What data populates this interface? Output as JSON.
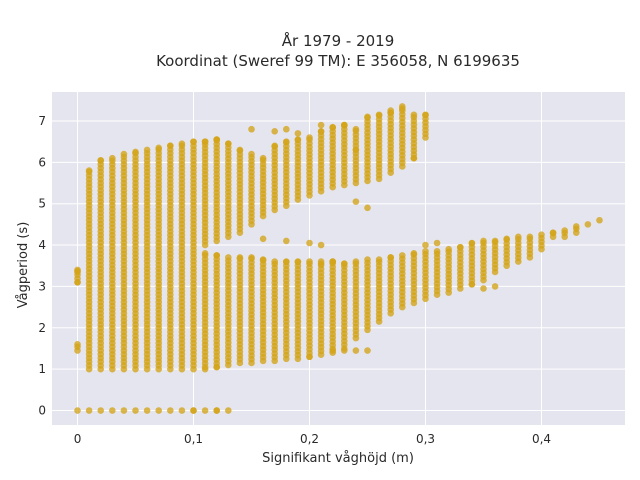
{
  "chart_data": {
    "type": "scatter",
    "title_lines": [
      "År 1979 - 2019",
      "Koordinat (Sweref 99 TM): E 356058, N 6199635"
    ],
    "xlabel": "Signifikant våghöjd (m)",
    "ylabel": "Vågperiod (s)",
    "xlim": [
      -0.022,
      0.472
    ],
    "ylim": [
      -0.35,
      7.7
    ],
    "xticks": [
      0,
      0.1,
      0.2,
      0.3,
      0.4
    ],
    "xtick_labels": [
      "0",
      "0,1",
      "0,2",
      "0,3",
      "0,4"
    ],
    "yticks": [
      0,
      1,
      2,
      3,
      4,
      5,
      6,
      7
    ],
    "ytick_labels": [
      "0",
      "1",
      "2",
      "3",
      "4",
      "5",
      "6",
      "7"
    ],
    "grid": true,
    "background_color": "#e5e5ef",
    "marker_color": "#d4a418",
    "column_spacing": 0.01,
    "columns": [
      {
        "x": 0.0,
        "ranges": [
          [
            0,
            0
          ],
          [
            1.45,
            1.6
          ],
          [
            3.1,
            3.4
          ]
        ]
      },
      {
        "x": 0.01,
        "ranges": [
          [
            0,
            0
          ],
          [
            1.0,
            5.8
          ]
        ]
      },
      {
        "x": 0.02,
        "ranges": [
          [
            0,
            0
          ],
          [
            1.0,
            6.05
          ]
        ]
      },
      {
        "x": 0.03,
        "ranges": [
          [
            0,
            0
          ],
          [
            1.0,
            6.1
          ]
        ]
      },
      {
        "x": 0.04,
        "ranges": [
          [
            0,
            0
          ],
          [
            1.0,
            6.2
          ]
        ]
      },
      {
        "x": 0.05,
        "ranges": [
          [
            0,
            0
          ],
          [
            1.0,
            6.25
          ]
        ]
      },
      {
        "x": 0.06,
        "ranges": [
          [
            0,
            0
          ],
          [
            1.0,
            6.3
          ]
        ]
      },
      {
        "x": 0.07,
        "ranges": [
          [
            0,
            0
          ],
          [
            1.0,
            6.35
          ]
        ]
      },
      {
        "x": 0.08,
        "ranges": [
          [
            0,
            0
          ],
          [
            1.0,
            6.4
          ]
        ]
      },
      {
        "x": 0.09,
        "ranges": [
          [
            0,
            0
          ],
          [
            1.0,
            6.45
          ]
        ]
      },
      {
        "x": 0.1,
        "ranges": [
          [
            0,
            0
          ],
          [
            1.0,
            6.5
          ]
        ]
      },
      {
        "x": 0.11,
        "ranges": [
          [
            1.05,
            3.8
          ],
          [
            4.0,
            6.5
          ]
        ]
      },
      {
        "x": 0.12,
        "ranges": [
          [
            0,
            0
          ],
          [
            1.05,
            3.75
          ],
          [
            4.1,
            6.55
          ]
        ]
      },
      {
        "x": 0.13,
        "ranges": [
          [
            1.1,
            3.7
          ],
          [
            4.2,
            6.45
          ]
        ]
      },
      {
        "x": 0.14,
        "ranges": [
          [
            1.15,
            3.7
          ],
          [
            4.3,
            6.3
          ]
        ]
      },
      {
        "x": 0.15,
        "ranges": [
          [
            1.15,
            3.7
          ],
          [
            4.5,
            6.2
          ]
        ]
      },
      {
        "x": 0.16,
        "ranges": [
          [
            1.2,
            3.65
          ],
          [
            4.7,
            6.1
          ]
        ]
      },
      {
        "x": 0.17,
        "ranges": [
          [
            1.2,
            3.6
          ],
          [
            4.85,
            6.4
          ]
        ]
      },
      {
        "x": 0.18,
        "ranges": [
          [
            1.25,
            3.6
          ],
          [
            4.95,
            6.5
          ]
        ]
      },
      {
        "x": 0.19,
        "ranges": [
          [
            1.25,
            3.6
          ],
          [
            5.1,
            6.55
          ]
        ]
      },
      {
        "x": 0.2,
        "ranges": [
          [
            1.3,
            3.6
          ],
          [
            5.2,
            6.6
          ]
        ]
      },
      {
        "x": 0.21,
        "ranges": [
          [
            1.35,
            3.55
          ],
          [
            5.3,
            6.75
          ]
        ]
      },
      {
        "x": 0.22,
        "ranges": [
          [
            1.4,
            3.6
          ],
          [
            5.4,
            6.85
          ]
        ]
      },
      {
        "x": 0.23,
        "ranges": [
          [
            1.5,
            3.55
          ],
          [
            5.45,
            6.9
          ]
        ]
      },
      {
        "x": 0.24,
        "ranges": [
          [
            1.75,
            3.6
          ],
          [
            5.5,
            6.8
          ]
        ]
      },
      {
        "x": 0.25,
        "ranges": [
          [
            1.95,
            3.65
          ],
          [
            5.55,
            7.1
          ]
        ]
      },
      {
        "x": 0.26,
        "ranges": [
          [
            2.15,
            3.65
          ],
          [
            5.6,
            7.15
          ]
        ]
      },
      {
        "x": 0.27,
        "ranges": [
          [
            2.35,
            3.7
          ],
          [
            5.75,
            7.2
          ]
        ]
      },
      {
        "x": 0.28,
        "ranges": [
          [
            2.5,
            3.75
          ],
          [
            5.9,
            7.3
          ]
        ]
      },
      {
        "x": 0.29,
        "ranges": [
          [
            2.6,
            3.8
          ],
          [
            6.1,
            7.15
          ]
        ]
      },
      {
        "x": 0.3,
        "ranges": [
          [
            2.7,
            3.85
          ],
          [
            6.6,
            7.15
          ]
        ]
      },
      {
        "x": 0.31,
        "ranges": [
          [
            2.8,
            3.85
          ]
        ]
      },
      {
        "x": 0.32,
        "ranges": [
          [
            2.85,
            3.9
          ]
        ]
      },
      {
        "x": 0.33,
        "ranges": [
          [
            2.95,
            3.95
          ]
        ]
      },
      {
        "x": 0.34,
        "ranges": [
          [
            3.05,
            4.05
          ]
        ]
      },
      {
        "x": 0.35,
        "ranges": [
          [
            3.15,
            4.1
          ]
        ]
      },
      {
        "x": 0.36,
        "ranges": [
          [
            3.35,
            4.1
          ]
        ]
      },
      {
        "x": 0.37,
        "ranges": [
          [
            3.5,
            4.15
          ]
        ]
      },
      {
        "x": 0.38,
        "ranges": [
          [
            3.6,
            4.2
          ]
        ]
      },
      {
        "x": 0.39,
        "ranges": [
          [
            3.7,
            4.2
          ]
        ]
      },
      {
        "x": 0.4,
        "ranges": [
          [
            3.9,
            4.25
          ]
        ]
      },
      {
        "x": 0.41,
        "ranges": [
          [
            4.2,
            4.3
          ]
        ]
      },
      {
        "x": 0.42,
        "ranges": [
          [
            4.2,
            4.35
          ]
        ]
      },
      {
        "x": 0.43,
        "ranges": [
          [
            4.3,
            4.45
          ]
        ]
      },
      {
        "x": 0.44,
        "ranges": [
          [
            4.5,
            4.5
          ]
        ]
      },
      {
        "x": 0.45,
        "ranges": [
          [
            4.6,
            4.6
          ]
        ]
      }
    ],
    "scattered_points": [
      [
        0.0,
        3.35
      ],
      [
        0.0,
        3.1
      ],
      [
        0.1,
        0.0
      ],
      [
        0.12,
        0.0
      ],
      [
        0.11,
        6.5
      ],
      [
        0.12,
        6.55
      ],
      [
        0.15,
        6.8
      ],
      [
        0.17,
        6.75
      ],
      [
        0.18,
        6.8
      ],
      [
        0.19,
        6.7
      ],
      [
        0.21,
        6.9
      ],
      [
        0.23,
        6.9
      ],
      [
        0.24,
        5.05
      ],
      [
        0.25,
        4.9
      ],
      [
        0.16,
        4.15
      ],
      [
        0.18,
        4.1
      ],
      [
        0.2,
        4.05
      ],
      [
        0.21,
        4.0
      ],
      [
        0.31,
        4.05
      ],
      [
        0.3,
        4.0
      ],
      [
        0.25,
        1.45
      ],
      [
        0.24,
        1.45
      ],
      [
        0.23,
        1.45
      ],
      [
        0.22,
        1.45
      ],
      [
        0.11,
        1.0
      ],
      [
        0.12,
        1.05
      ],
      [
        0.2,
        1.3
      ],
      [
        0.24,
        6.3
      ],
      [
        0.29,
        6.1
      ],
      [
        0.35,
        2.95
      ],
      [
        0.36,
        3.0
      ],
      [
        0.34,
        3.05
      ],
      [
        0.13,
        0.0
      ],
      [
        0.11,
        0.0
      ],
      [
        0.21,
        3.6
      ],
      [
        0.22,
        3.6
      ],
      [
        0.23,
        3.55
      ],
      [
        0.28,
        7.35
      ],
      [
        0.27,
        7.25
      ]
    ]
  }
}
